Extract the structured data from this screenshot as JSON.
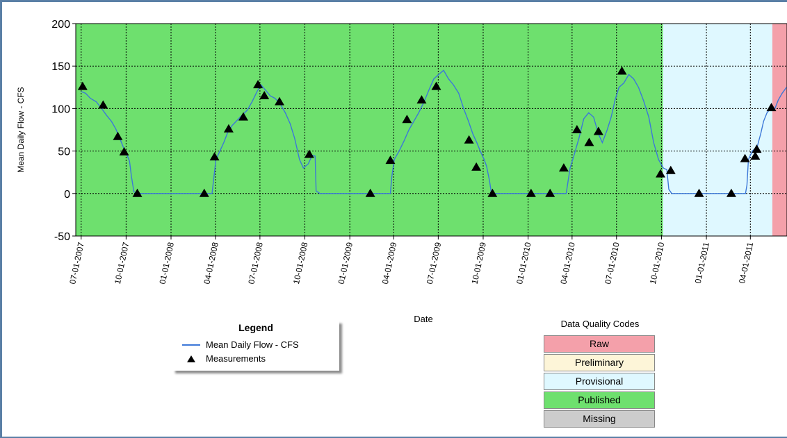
{
  "chart_data": {
    "type": "line",
    "ylabel": "Mean Daily Flow - CFS",
    "xlabel": "Date",
    "ylim": [
      -50,
      200
    ],
    "yticks": [
      -50,
      0,
      50,
      100,
      150,
      200
    ],
    "xlim": [
      "2007-06-20",
      "2011-06-15"
    ],
    "xtick_labels": [
      "07-01-2007",
      "10-01-2007",
      "01-01-2008",
      "04-01-2008",
      "07-01-2008",
      "10-01-2008",
      "01-01-2009",
      "04-01-2009",
      "07-01-2009",
      "10-01-2009",
      "01-01-2010",
      "04-01-2010",
      "07-01-2010",
      "10-01-2010",
      "01-01-2011",
      "04-01-2011"
    ],
    "grid": true,
    "quality_bands": [
      {
        "code": "Published",
        "start": "2007-06-20",
        "end": "2010-10-04",
        "color": "#6ee06e"
      },
      {
        "code": "Provisional",
        "start": "2010-10-04",
        "end": "2011-05-16",
        "color": "#dff8ff"
      },
      {
        "code": "Raw",
        "start": "2011-05-16",
        "end": "2011-06-15",
        "color": "#f4a0aa"
      }
    ],
    "series": [
      {
        "name": "Mean Daily Flow - CFS",
        "color": "#3c78d8",
        "points": [
          [
            "2007-07-01",
            120
          ],
          [
            "2007-07-10",
            118
          ],
          [
            "2007-07-20",
            112
          ],
          [
            "2007-08-01",
            108
          ],
          [
            "2007-08-12",
            100
          ],
          [
            "2007-08-22",
            92
          ],
          [
            "2007-09-01",
            85
          ],
          [
            "2007-09-10",
            76
          ],
          [
            "2007-09-18",
            65
          ],
          [
            "2007-09-25",
            55
          ],
          [
            "2007-10-03",
            45
          ],
          [
            "2007-10-08",
            38
          ],
          [
            "2007-10-12",
            20
          ],
          [
            "2007-10-17",
            2
          ],
          [
            "2007-10-25",
            0
          ],
          [
            "2008-03-25",
            0
          ],
          [
            "2008-03-28",
            15
          ],
          [
            "2008-04-02",
            40
          ],
          [
            "2008-04-10",
            50
          ],
          [
            "2008-04-18",
            60
          ],
          [
            "2008-04-26",
            72
          ],
          [
            "2008-05-05",
            80
          ],
          [
            "2008-05-15",
            86
          ],
          [
            "2008-05-25",
            92
          ],
          [
            "2008-06-05",
            98
          ],
          [
            "2008-06-15",
            108
          ],
          [
            "2008-06-25",
            120
          ],
          [
            "2008-07-03",
            128
          ],
          [
            "2008-07-12",
            122
          ],
          [
            "2008-07-22",
            115
          ],
          [
            "2008-08-01",
            112
          ],
          [
            "2008-08-12",
            105
          ],
          [
            "2008-08-22",
            95
          ],
          [
            "2008-09-01",
            82
          ],
          [
            "2008-09-10",
            65
          ],
          [
            "2008-09-20",
            40
          ],
          [
            "2008-09-28",
            30
          ],
          [
            "2008-10-08",
            35
          ],
          [
            "2008-10-16",
            45
          ],
          [
            "2008-10-22",
            44
          ],
          [
            "2008-10-24",
            3
          ],
          [
            "2008-11-01",
            0
          ],
          [
            "2009-03-25",
            0
          ],
          [
            "2009-03-28",
            20
          ],
          [
            "2009-04-02",
            40
          ],
          [
            "2009-04-12",
            50
          ],
          [
            "2009-04-22",
            62
          ],
          [
            "2009-05-02",
            75
          ],
          [
            "2009-05-12",
            85
          ],
          [
            "2009-05-22",
            95
          ],
          [
            "2009-06-02",
            108
          ],
          [
            "2009-06-12",
            122
          ],
          [
            "2009-06-22",
            135
          ],
          [
            "2009-07-02",
            140
          ],
          [
            "2009-07-12",
            145
          ],
          [
            "2009-07-22",
            135
          ],
          [
            "2009-08-01",
            128
          ],
          [
            "2009-08-12",
            118
          ],
          [
            "2009-08-22",
            100
          ],
          [
            "2009-09-01",
            85
          ],
          [
            "2009-09-10",
            70
          ],
          [
            "2009-09-18",
            60
          ],
          [
            "2009-09-25",
            50
          ],
          [
            "2009-10-03",
            40
          ],
          [
            "2009-10-08",
            32
          ],
          [
            "2009-10-14",
            15
          ],
          [
            "2009-10-18",
            0
          ],
          [
            "2010-03-20",
            0
          ],
          [
            "2010-03-24",
            15
          ],
          [
            "2010-03-28",
            30
          ],
          [
            "2010-04-05",
            45
          ],
          [
            "2010-04-15",
            65
          ],
          [
            "2010-04-25",
            88
          ],
          [
            "2010-05-05",
            95
          ],
          [
            "2010-05-15",
            90
          ],
          [
            "2010-05-25",
            70
          ],
          [
            "2010-06-02",
            60
          ],
          [
            "2010-06-12",
            75
          ],
          [
            "2010-06-20",
            90
          ],
          [
            "2010-06-28",
            110
          ],
          [
            "2010-07-06",
            125
          ],
          [
            "2010-07-16",
            130
          ],
          [
            "2010-07-26",
            140
          ],
          [
            "2010-08-05",
            135
          ],
          [
            "2010-08-15",
            125
          ],
          [
            "2010-08-25",
            110
          ],
          [
            "2010-09-05",
            90
          ],
          [
            "2010-09-15",
            60
          ],
          [
            "2010-09-25",
            40
          ],
          [
            "2010-10-05",
            30
          ],
          [
            "2010-10-12",
            28
          ],
          [
            "2010-10-16",
            5
          ],
          [
            "2010-10-22",
            0
          ],
          [
            "2011-03-22",
            0
          ],
          [
            "2011-03-25",
            10
          ],
          [
            "2011-03-28",
            40
          ],
          [
            "2011-04-05",
            50
          ],
          [
            "2011-04-15",
            55
          ],
          [
            "2011-04-22",
            70
          ],
          [
            "2011-04-28",
            85
          ],
          [
            "2011-05-05",
            95
          ],
          [
            "2011-05-12",
            100
          ],
          [
            "2011-05-20",
            98
          ],
          [
            "2011-05-28",
            110
          ],
          [
            "2011-06-05",
            118
          ],
          [
            "2011-06-14",
            125
          ]
        ]
      },
      {
        "name": "Measurements",
        "marker": "triangle",
        "color": "#000000",
        "points": [
          [
            "2007-07-04",
            126
          ],
          [
            "2007-08-15",
            104
          ],
          [
            "2007-09-14",
            67
          ],
          [
            "2007-09-27",
            49
          ],
          [
            "2007-10-24",
            0
          ],
          [
            "2008-03-09",
            0
          ],
          [
            "2008-03-30",
            43
          ],
          [
            "2008-04-28",
            76
          ],
          [
            "2008-05-28",
            90
          ],
          [
            "2008-06-27",
            128
          ],
          [
            "2008-07-10",
            115
          ],
          [
            "2008-08-10",
            108
          ],
          [
            "2008-10-10",
            46
          ],
          [
            "2009-02-12",
            0
          ],
          [
            "2009-03-25",
            39
          ],
          [
            "2009-04-28",
            87
          ],
          [
            "2009-05-28",
            110
          ],
          [
            "2009-06-27",
            126
          ],
          [
            "2009-09-02",
            63
          ],
          [
            "2009-09-17",
            31
          ],
          [
            "2009-10-20",
            0
          ],
          [
            "2010-01-07",
            0
          ],
          [
            "2010-02-15",
            0
          ],
          [
            "2010-03-15",
            30
          ],
          [
            "2010-04-11",
            75
          ],
          [
            "2010-05-06",
            60
          ],
          [
            "2010-05-25",
            73
          ],
          [
            "2010-07-12",
            144
          ],
          [
            "2010-09-29",
            23
          ],
          [
            "2010-10-20",
            27
          ],
          [
            "2010-12-17",
            0
          ],
          [
            "2011-02-21",
            0
          ],
          [
            "2011-03-21",
            41
          ],
          [
            "2011-04-11",
            44
          ],
          [
            "2011-04-14",
            52
          ],
          [
            "2011-05-14",
            101
          ]
        ]
      }
    ]
  },
  "legend": {
    "title": "Legend",
    "items": [
      {
        "label": "Mean Daily Flow - CFS",
        "symbol": "line",
        "color": "#3c78d8"
      },
      {
        "label": "Measurements",
        "symbol": "triangle",
        "color": "#000000"
      }
    ]
  },
  "data_quality": {
    "title": "Data Quality Codes",
    "items": [
      {
        "label": "Raw",
        "color": "#f4a0aa"
      },
      {
        "label": "Preliminary",
        "color": "#fdf5d8"
      },
      {
        "label": "Provisional",
        "color": "#dff8ff"
      },
      {
        "label": "Published",
        "color": "#6ee06e"
      },
      {
        "label": "Missing",
        "color": "#cccccc"
      }
    ]
  }
}
